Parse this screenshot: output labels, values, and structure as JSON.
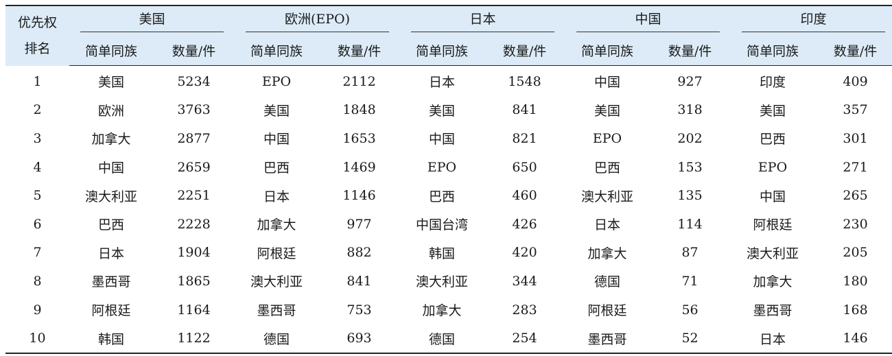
{
  "header": {
    "rank_label_line1": "优先权",
    "rank_label_line2": "排名",
    "groups": [
      "美国",
      "欧洲(EPO)",
      "日本",
      "中国",
      "印度"
    ],
    "sub_name": "简单同族",
    "sub_count": "数量/件"
  },
  "rows": [
    {
      "rank": "1",
      "cells": [
        [
          "美国",
          "5234"
        ],
        [
          "EPO",
          "2112"
        ],
        [
          "日本",
          "1548"
        ],
        [
          "中国",
          "927"
        ],
        [
          "印度",
          "409"
        ]
      ]
    },
    {
      "rank": "2",
      "cells": [
        [
          "欧洲",
          "3763"
        ],
        [
          "美国",
          "1848"
        ],
        [
          "美国",
          "841"
        ],
        [
          "美国",
          "318"
        ],
        [
          "美国",
          "357"
        ]
      ]
    },
    {
      "rank": "3",
      "cells": [
        [
          "加拿大",
          "2877"
        ],
        [
          "中国",
          "1653"
        ],
        [
          "中国",
          "821"
        ],
        [
          "EPO",
          "202"
        ],
        [
          "巴西",
          "301"
        ]
      ]
    },
    {
      "rank": "4",
      "cells": [
        [
          "中国",
          "2659"
        ],
        [
          "巴西",
          "1469"
        ],
        [
          "EPO",
          "650"
        ],
        [
          "巴西",
          "153"
        ],
        [
          "EPO",
          "271"
        ]
      ]
    },
    {
      "rank": "5",
      "cells": [
        [
          "澳大利亚",
          "2251"
        ],
        [
          "日本",
          "1146"
        ],
        [
          "巴西",
          "460"
        ],
        [
          "澳大利亚",
          "135"
        ],
        [
          "中国",
          "265"
        ]
      ]
    },
    {
      "rank": "6",
      "cells": [
        [
          "巴西",
          "2228"
        ],
        [
          "加拿大",
          "977"
        ],
        [
          "中国台湾",
          "426"
        ],
        [
          "日本",
          "114"
        ],
        [
          "阿根廷",
          "230"
        ]
      ]
    },
    {
      "rank": "7",
      "cells": [
        [
          "日本",
          "1904"
        ],
        [
          "阿根廷",
          "882"
        ],
        [
          "韩国",
          "420"
        ],
        [
          "加拿大",
          "87"
        ],
        [
          "澳大利亚",
          "205"
        ]
      ]
    },
    {
      "rank": "8",
      "cells": [
        [
          "墨西哥",
          "1865"
        ],
        [
          "澳大利亚",
          "841"
        ],
        [
          "澳大利亚",
          "344"
        ],
        [
          "德国",
          "71"
        ],
        [
          "加拿大",
          "180"
        ]
      ]
    },
    {
      "rank": "9",
      "cells": [
        [
          "阿根廷",
          "1164"
        ],
        [
          "墨西哥",
          "753"
        ],
        [
          "加拿大",
          "283"
        ],
        [
          "阿根廷",
          "56"
        ],
        [
          "墨西哥",
          "168"
        ]
      ]
    },
    {
      "rank": "10",
      "cells": [
        [
          "韩国",
          "1122"
        ],
        [
          "德国",
          "693"
        ],
        [
          "德国",
          "254"
        ],
        [
          "墨西哥",
          "52"
        ],
        [
          "日本",
          "146"
        ]
      ]
    }
  ]
}
